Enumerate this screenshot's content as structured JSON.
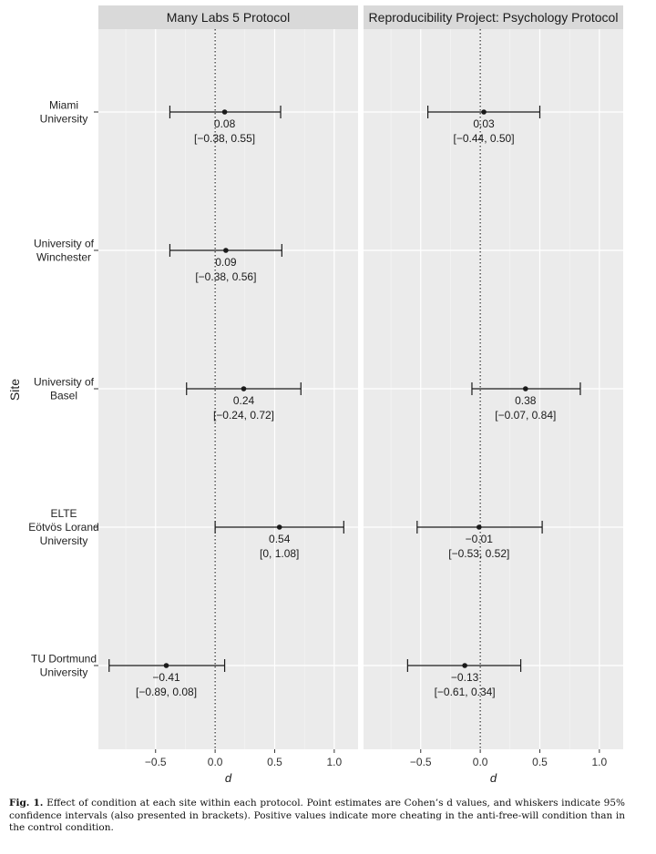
{
  "chart_data": {
    "type": "forest",
    "y_axis_label": "Site",
    "x_axis_label": "d",
    "xlim": [
      -0.98,
      1.2
    ],
    "x_ticks": [
      -0.5,
      0.0,
      0.5,
      1.0
    ],
    "x_tick_labels": [
      "−0.5",
      "0.0",
      "0.5",
      "1.0"
    ],
    "reference_line": 0,
    "grid": true,
    "sites": [
      {
        "lines": [
          "Miami",
          "University"
        ]
      },
      {
        "lines": [
          "University of",
          "Winchester"
        ]
      },
      {
        "lines": [
          "University of",
          "Basel"
        ]
      },
      {
        "lines": [
          "ELTE",
          "Eötvös Lorand",
          "University"
        ]
      },
      {
        "lines": [
          "TU Dortmund",
          "University"
        ]
      }
    ],
    "panels": [
      {
        "title": "Many Labs 5 Protocol",
        "estimates": [
          {
            "d": 0.08,
            "lo": -0.38,
            "hi": 0.55,
            "label_d": "0.08",
            "label_ci": "[−0.38, 0.55]"
          },
          {
            "d": 0.09,
            "lo": -0.38,
            "hi": 0.56,
            "label_d": "0.09",
            "label_ci": "[−0.38, 0.56]"
          },
          {
            "d": 0.24,
            "lo": -0.24,
            "hi": 0.72,
            "label_d": "0.24",
            "label_ci": "[−0.24, 0.72]"
          },
          {
            "d": 0.54,
            "lo": 0,
            "hi": 1.08,
            "label_d": "0.54",
            "label_ci": "[0, 1.08]"
          },
          {
            "d": -0.41,
            "lo": -0.89,
            "hi": 0.08,
            "label_d": "−0.41",
            "label_ci": "[−0.89, 0.08]"
          }
        ]
      },
      {
        "title": "Reproducibility Project: Psychology Protocol",
        "estimates": [
          {
            "d": 0.03,
            "lo": -0.44,
            "hi": 0.5,
            "label_d": "0.03",
            "label_ci": "[−0.44, 0.50]"
          },
          {
            "d": null,
            "lo": null,
            "hi": null,
            "label_d": "",
            "label_ci": ""
          },
          {
            "d": 0.38,
            "lo": -0.07,
            "hi": 0.84,
            "label_d": "0.38",
            "label_ci": "[−0.07, 0.84]"
          },
          {
            "d": -0.01,
            "lo": -0.53,
            "hi": 0.52,
            "label_d": "−0.01",
            "label_ci": "[−0.53, 0.52]"
          },
          {
            "d": -0.13,
            "lo": -0.61,
            "hi": 0.34,
            "label_d": "−0.13",
            "label_ci": "[−0.61, 0.34]"
          }
        ]
      }
    ]
  },
  "caption": {
    "label": "Fig. 1.",
    "text": "Effect of condition at each site within each protocol. Point estimates are Cohen’s d values, and whiskers indicate 95% confidence intervals (also presented in brackets). Positive values indicate more cheating in the anti-free-will condition than in the control condition."
  },
  "colors": {
    "panel_bg": "#ebebeb",
    "strip_bg": "#d9d9d9",
    "grid": "#ffffff",
    "ink": "#1a1a1a"
  }
}
